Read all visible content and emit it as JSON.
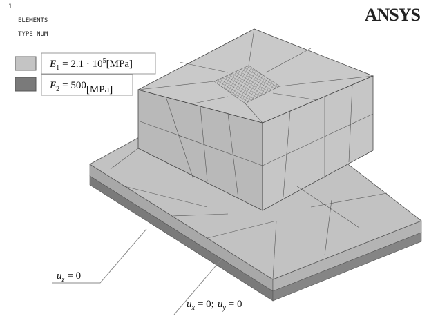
{
  "header": {
    "number": "1",
    "line1": "ELEMENTS",
    "line2": "TYPE NUM",
    "logo": "ANSYS"
  },
  "legend": [
    {
      "symbol": "E",
      "subscript": "1",
      "expression": "= 2.1 · 10",
      "superscript": "5",
      "unit": "[MPa]"
    },
    {
      "symbol": "E",
      "subscript": "2",
      "expression": "= 500",
      "superscript": "",
      "unit": "[MPa]"
    }
  ],
  "annotations": [
    {
      "symbol": "u",
      "subscript": "z",
      "text": "= 0"
    },
    {
      "symbol": "u",
      "subscript": "x",
      "text": "= 0;",
      "symbol2": "u",
      "subscript2": "y",
      "text2": "= 0"
    }
  ]
}
